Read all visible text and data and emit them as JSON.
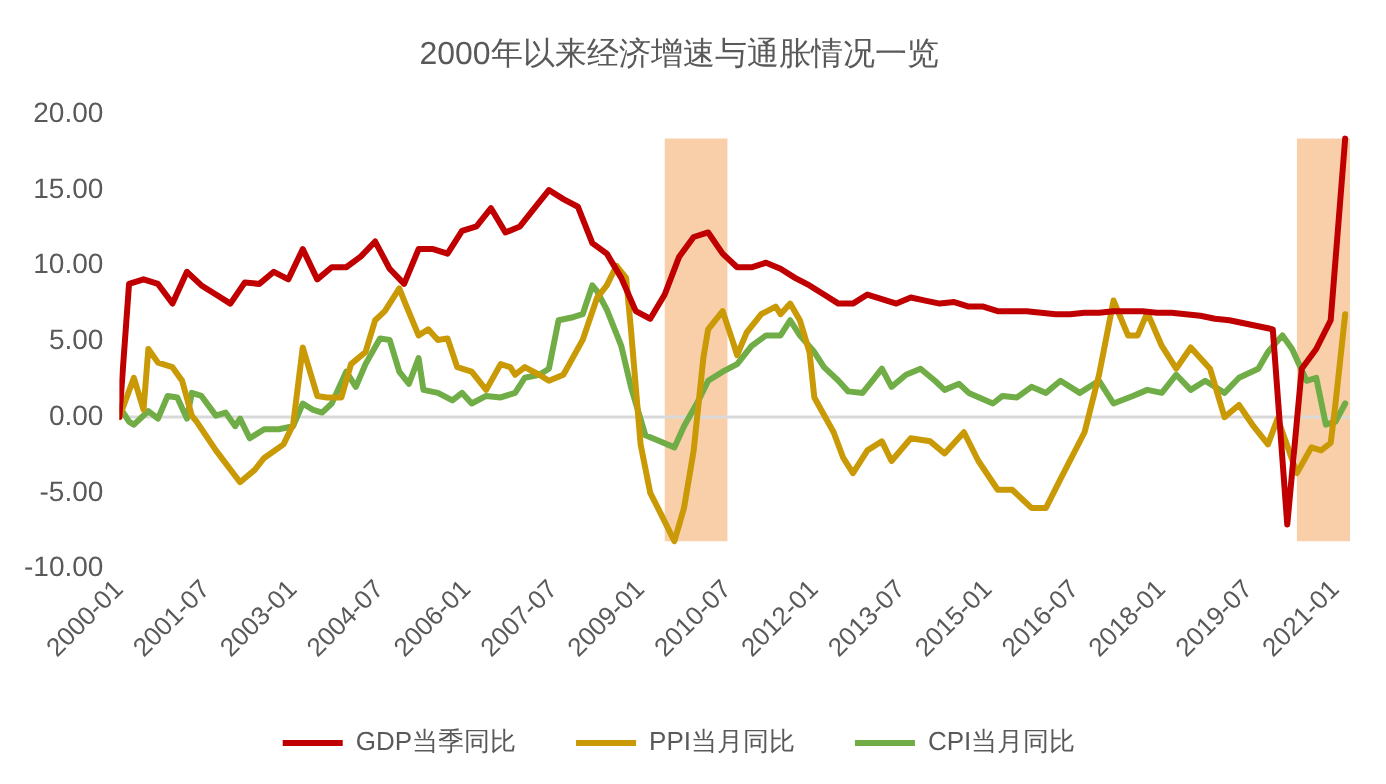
{
  "chart_data": {
    "type": "line",
    "title": "2000年以来经济增速与通胀情况一览",
    "xlim": [
      "2000-01",
      "2021-04"
    ],
    "xticks": [
      "2000-01",
      "2001-07",
      "2003-01",
      "2004-07",
      "2006-01",
      "2007-07",
      "2009-01",
      "2010-07",
      "2012-01",
      "2013-07",
      "2015-01",
      "2016-07",
      "2018-01",
      "2019-07",
      "2021-01"
    ],
    "ylim": [
      -10,
      20
    ],
    "yticks": [
      {
        "value": -10,
        "label": "-10.00"
      },
      {
        "value": -5,
        "label": "-5.00"
      },
      {
        "value": 0,
        "label": "0.00"
      },
      {
        "value": 5,
        "label": "5.00"
      },
      {
        "value": 10,
        "label": "10.00"
      },
      {
        "value": 15,
        "label": "15.00"
      },
      {
        "value": 20,
        "label": "20.00"
      }
    ],
    "grid": false,
    "ref_lines": [
      {
        "axis": "y",
        "value": 0,
        "color": "#d9d9d9"
      }
    ],
    "legend": "bottom",
    "marker": "none",
    "bands": [
      {
        "axis": "x",
        "from": "2009-06",
        "to": "2010-07",
        "color": "#f9cfa9"
      },
      {
        "axis": "x",
        "from": "2020-05",
        "to": "2021-04",
        "color": "#f9cfa9"
      }
    ],
    "series": [
      {
        "name": "GDP当季同比",
        "color": "#c00000",
        "x": [
          "2000-01",
          "2000-03",
          "2000-06",
          "2000-09",
          "2000-12",
          "2001-03",
          "2001-06",
          "2001-09",
          "2001-12",
          "2002-03",
          "2002-06",
          "2002-09",
          "2002-12",
          "2003-03",
          "2003-06",
          "2003-09",
          "2003-12",
          "2004-03",
          "2004-06",
          "2004-09",
          "2004-12",
          "2005-03",
          "2005-06",
          "2005-09",
          "2005-12",
          "2006-03",
          "2006-06",
          "2006-09",
          "2006-12",
          "2007-03",
          "2007-06",
          "2007-09",
          "2007-12",
          "2008-03",
          "2008-06",
          "2008-09",
          "2008-12",
          "2009-03",
          "2009-06",
          "2009-09",
          "2009-12",
          "2010-03",
          "2010-06",
          "2010-09",
          "2010-12",
          "2011-03",
          "2011-06",
          "2011-09",
          "2011-12",
          "2012-03",
          "2012-06",
          "2012-09",
          "2012-12",
          "2013-03",
          "2013-06",
          "2013-09",
          "2013-12",
          "2014-03",
          "2014-06",
          "2014-09",
          "2014-12",
          "2015-03",
          "2015-06",
          "2015-09",
          "2015-12",
          "2016-03",
          "2016-06",
          "2016-09",
          "2016-12",
          "2017-03",
          "2017-06",
          "2017-09",
          "2017-12",
          "2018-03",
          "2018-06",
          "2018-09",
          "2018-12",
          "2019-03",
          "2019-06",
          "2019-09",
          "2019-12",
          "2020-03",
          "2020-06",
          "2020-09",
          "2020-12",
          "2021-03"
        ],
        "values": [
          0,
          8.8,
          9.1,
          8.8,
          7.5,
          9.6,
          8.7,
          8.1,
          7.5,
          8.9,
          8.8,
          9.6,
          9.1,
          11.1,
          9.1,
          9.9,
          9.9,
          10.6,
          11.6,
          9.8,
          8.8,
          11.1,
          11.1,
          10.8,
          12.3,
          12.6,
          13.8,
          12.2,
          12.6,
          13.8,
          15.0,
          14.4,
          13.9,
          11.5,
          10.8,
          9.2,
          7.0,
          6.5,
          8.1,
          10.6,
          11.9,
          12.2,
          10.8,
          9.9,
          9.9,
          10.2,
          9.8,
          9.2,
          8.7,
          8.1,
          7.5,
          7.5,
          8.1,
          7.8,
          7.5,
          7.9,
          7.7,
          7.5,
          7.6,
          7.3,
          7.3,
          7.0,
          7.0,
          7.0,
          6.9,
          6.8,
          6.8,
          6.9,
          6.9,
          7.0,
          7.0,
          7.0,
          6.9,
          6.9,
          6.8,
          6.7,
          6.5,
          6.4,
          6.2,
          6.0,
          5.8,
          -7.1,
          3.2,
          4.5,
          6.4,
          18.4
        ]
      },
      {
        "name": "PPI当月同比",
        "color": "#c99a06",
        "x": [
          "2000-01",
          "2000-04",
          "2000-06",
          "2000-07",
          "2000-09",
          "2000-12",
          "2001-02",
          "2001-04",
          "2001-05",
          "2001-09",
          "2002-02",
          "2002-05",
          "2002-07",
          "2002-11",
          "2003-01",
          "2003-03",
          "2003-06",
          "2003-08",
          "2003-11",
          "2004-01",
          "2004-04",
          "2004-06",
          "2004-08",
          "2004-11",
          "2004-12",
          "2005-03",
          "2005-05",
          "2005-07",
          "2005-09",
          "2005-11",
          "2006-02",
          "2006-05",
          "2006-08",
          "2006-10",
          "2006-11",
          "2007-01",
          "2007-04",
          "2007-06",
          "2007-09",
          "2008-01",
          "2008-04",
          "2008-06",
          "2008-08",
          "2008-10",
          "2008-11",
          "2009-01",
          "2009-03",
          "2009-06",
          "2009-08",
          "2009-10",
          "2009-12",
          "2010-02",
          "2010-03",
          "2010-06",
          "2010-08",
          "2010-09",
          "2010-11",
          "2011-02",
          "2011-05",
          "2011-06",
          "2011-08",
          "2011-10",
          "2011-12",
          "2012-01",
          "2012-05",
          "2012-07",
          "2012-09",
          "2012-12",
          "2013-03",
          "2013-05",
          "2013-09",
          "2014-01",
          "2014-04",
          "2014-08",
          "2014-11",
          "2015-03",
          "2015-06",
          "2015-10",
          "2016-01",
          "2016-04",
          "2016-09",
          "2016-12",
          "2017-03",
          "2017-06",
          "2017-08",
          "2017-10",
          "2018-01",
          "2018-04",
          "2018-07",
          "2018-11",
          "2019-02",
          "2019-05",
          "2019-08",
          "2019-11",
          "2020-01",
          "2020-05",
          "2020-08",
          "2020-10",
          "2020-12",
          "2021-01",
          "2021-03"
        ],
        "values": [
          0,
          2.6,
          0.5,
          4.5,
          3.6,
          3.3,
          2.4,
          0.1,
          -0.3,
          -2.2,
          -4.3,
          -3.5,
          -2.7,
          -1.8,
          -0.5,
          4.6,
          1.4,
          1.3,
          1.3,
          3.5,
          4.3,
          6.4,
          7.0,
          8.5,
          7.7,
          5.4,
          5.8,
          5.1,
          5.2,
          3.3,
          3.0,
          1.8,
          3.5,
          3.3,
          2.8,
          3.3,
          2.8,
          2.4,
          2.8,
          5.1,
          7.9,
          8.7,
          10.0,
          9.2,
          5.8,
          -1.8,
          -5.0,
          -6.9,
          -8.2,
          -6.0,
          -2.2,
          3.9,
          5.8,
          7.0,
          5.1,
          4.1,
          5.6,
          6.8,
          7.3,
          6.8,
          7.5,
          6.4,
          4.3,
          1.3,
          -1.0,
          -2.7,
          -3.7,
          -2.2,
          -1.6,
          -2.9,
          -1.4,
          -1.6,
          -2.4,
          -1.0,
          -2.9,
          -4.8,
          -4.8,
          -6.0,
          -6.0,
          -4.1,
          -1.0,
          2.8,
          7.7,
          5.4,
          5.4,
          6.9,
          4.7,
          3.2,
          4.6,
          3.2,
          0,
          0.8,
          -0.6,
          -1.8,
          -0.1,
          -3.7,
          -2.0,
          -2.2,
          -1.7,
          0.9,
          6.8
        ]
      },
      {
        "name": "CPI当月同比",
        "color": "#70ad47",
        "x": [
          "2000-01",
          "2000-03",
          "2000-04",
          "2000-07",
          "2000-09",
          "2000-11",
          "2001-01",
          "2001-03",
          "2001-04",
          "2001-06",
          "2001-09",
          "2001-11",
          "2002-01",
          "2002-02",
          "2002-04",
          "2002-07",
          "2002-10",
          "2003-01",
          "2003-03",
          "2003-05",
          "2003-07",
          "2003-09",
          "2003-12",
          "2004-02",
          "2004-04",
          "2004-07",
          "2004-09",
          "2004-11",
          "2005-01",
          "2005-03",
          "2005-04",
          "2005-07",
          "2005-10",
          "2005-12",
          "2006-02",
          "2006-05",
          "2006-08",
          "2006-11",
          "2007-01",
          "2007-04",
          "2007-06",
          "2007-08",
          "2007-11",
          "2008-01",
          "2008-03",
          "2008-04",
          "2008-06",
          "2008-09",
          "2008-11",
          "2009-02",
          "2009-05",
          "2009-08",
          "2009-10",
          "2010-01",
          "2010-03",
          "2010-06",
          "2010-09",
          "2010-12",
          "2011-03",
          "2011-06",
          "2011-08",
          "2011-10",
          "2012-01",
          "2012-03",
          "2012-06",
          "2012-08",
          "2012-11",
          "2013-01",
          "2013-03",
          "2013-05",
          "2013-08",
          "2013-11",
          "2014-02",
          "2014-04",
          "2014-07",
          "2014-09",
          "2015-02",
          "2015-04",
          "2015-07",
          "2015-10",
          "2016-01",
          "2016-04",
          "2016-08",
          "2016-12",
          "2017-03",
          "2017-07",
          "2017-10",
          "2018-01",
          "2018-04",
          "2018-07",
          "2018-10",
          "2019-02",
          "2019-05",
          "2019-09",
          "2019-11",
          "2020-02",
          "2020-04",
          "2020-07",
          "2020-09",
          "2020-11",
          "2021-01",
          "2021-03"
        ],
        "values": [
          0.7,
          -0.3,
          -0.5,
          0.4,
          -0.1,
          1.4,
          1.3,
          -0.1,
          1.6,
          1.4,
          0.1,
          0.3,
          -0.6,
          -0.1,
          -1.4,
          -0.8,
          -0.8,
          -0.6,
          0.9,
          0.5,
          0.3,
          0.9,
          3.0,
          2.0,
          3.5,
          5.2,
          5.1,
          3.0,
          2.2,
          3.9,
          1.8,
          1.6,
          1.1,
          1.6,
          0.9,
          1.4,
          1.3,
          1.6,
          2.6,
          2.8,
          3.2,
          6.4,
          6.6,
          6.8,
          8.7,
          8.3,
          7.1,
          4.7,
          2.0,
          -1.2,
          -1.6,
          -2.0,
          -0.6,
          1.1,
          2.4,
          3.0,
          3.5,
          4.7,
          5.4,
          5.4,
          6.4,
          5.4,
          4.3,
          3.3,
          2.4,
          1.7,
          1.6,
          2.4,
          3.2,
          2.0,
          2.8,
          3.2,
          2.4,
          1.8,
          2.2,
          1.6,
          0.9,
          1.4,
          1.3,
          2.0,
          1.6,
          2.4,
          1.6,
          2.4,
          0.9,
          1.4,
          1.8,
          1.6,
          2.8,
          1.8,
          2.4,
          1.6,
          2.6,
          3.2,
          4.3,
          5.4,
          4.5,
          2.4,
          2.6,
          -0.5,
          -0.3,
          0.9
        ]
      }
    ]
  }
}
